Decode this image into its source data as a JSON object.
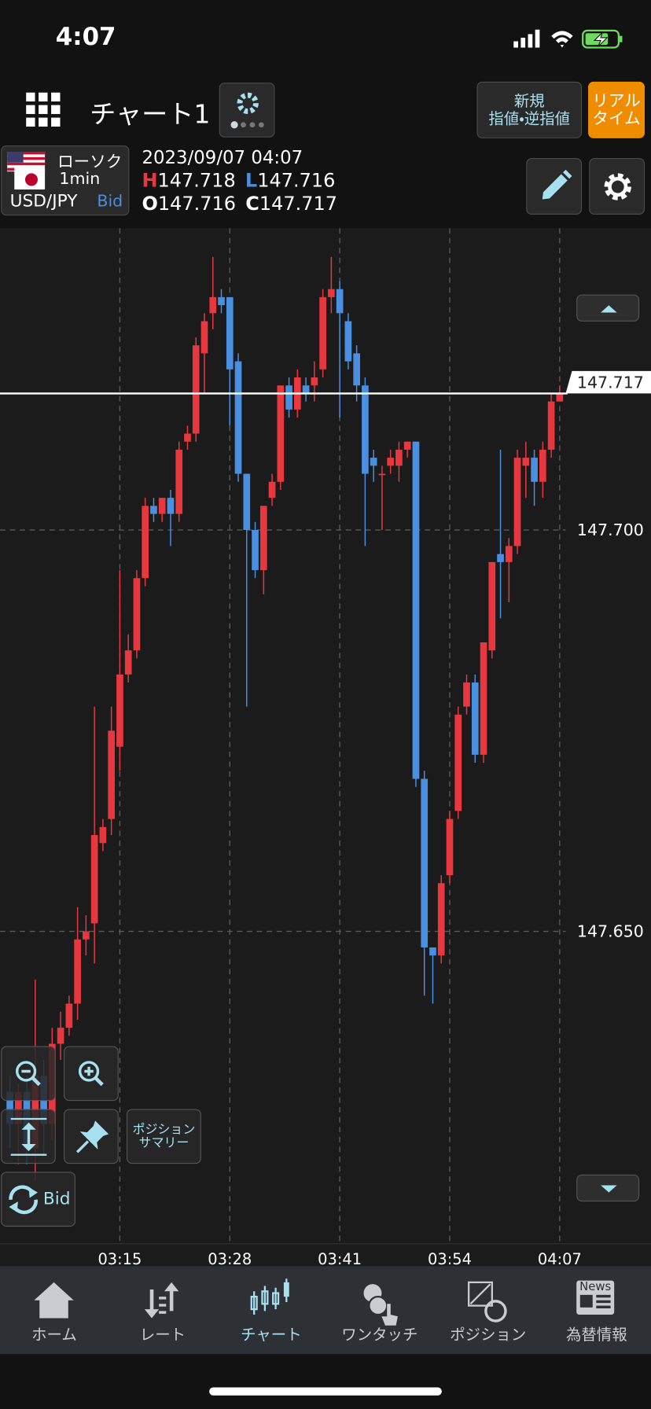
{
  "status_bar": {
    "time": "4:07"
  },
  "header": {
    "title": "チャート1",
    "new_order": [
      "新規",
      "指値・逆指値"
    ],
    "realtime": [
      "リアル",
      "タイム"
    ]
  },
  "instrument": {
    "chart_type": "ローソク",
    "interval": "1min",
    "pair": "USD/JPY",
    "side": "Bid"
  },
  "quote": {
    "datetime": "2023/09/07 04:07",
    "high_label": "H",
    "high": 147.718,
    "low_label": "L",
    "low": 147.716,
    "open_label": "O",
    "open": 147.716,
    "close_label": "C",
    "close": 147.717
  },
  "controls": {
    "position_summary": [
      "ポジション",
      "サマリー"
    ],
    "price_side": "Bid"
  },
  "chart_data": {
    "type": "candlestick",
    "categories": [
      null,
      null,
      null,
      null,
      null,
      null,
      null,
      null,
      null,
      null,
      null,
      null,
      null,
      "03:15",
      null,
      null,
      null,
      null,
      null,
      null,
      null,
      null,
      null,
      null,
      null,
      null,
      "03:28",
      null,
      null,
      null,
      null,
      null,
      null,
      null,
      null,
      null,
      null,
      null,
      null,
      "03:41",
      null,
      null,
      null,
      null,
      null,
      null,
      null,
      null,
      null,
      null,
      null,
      null,
      "03:54",
      null,
      null,
      null,
      null,
      null,
      null,
      null,
      null,
      null,
      null,
      null,
      null,
      "04:07"
    ],
    "open": [
      147.63,
      147.626,
      147.63,
      147.623,
      147.632,
      147.626,
      147.636,
      147.638,
      147.641,
      147.649,
      147.651,
      147.661,
      147.664,
      147.673,
      147.682,
      147.685,
      147.694,
      147.703,
      147.702,
      147.704,
      147.702,
      147.711,
      147.712,
      147.722,
      147.727,
      147.729,
      147.729,
      147.721,
      147.707,
      147.7,
      147.695,
      147.704,
      147.706,
      147.718,
      147.715,
      147.718,
      147.718,
      147.72,
      147.729,
      147.73,
      147.726,
      147.722,
      147.718,
      147.709,
      147.707,
      147.708,
      147.708,
      147.71,
      147.711,
      147.669,
      147.648,
      147.647,
      147.657,
      147.665,
      147.678,
      147.681,
      147.672,
      147.685,
      147.697,
      147.696,
      147.698,
      147.708,
      147.709,
      147.706,
      147.71,
      147.716
    ],
    "high": [
      147.632,
      147.631,
      147.632,
      147.644,
      147.634,
      147.638,
      147.64,
      147.642,
      147.653,
      147.652,
      147.678,
      147.664,
      147.678,
      147.695,
      147.687,
      147.695,
      147.704,
      147.704,
      147.704,
      147.705,
      147.711,
      147.713,
      147.724,
      147.727,
      147.734,
      147.73,
      147.729,
      147.722,
      147.707,
      147.701,
      147.703,
      147.707,
      147.718,
      147.719,
      147.72,
      147.719,
      147.721,
      147.73,
      147.734,
      147.731,
      147.727,
      147.723,
      147.719,
      147.71,
      147.708,
      147.71,
      147.711,
      147.711,
      147.711,
      147.67,
      147.648,
      147.657,
      147.665,
      147.678,
      147.682,
      147.682,
      147.686,
      147.696,
      147.71,
      147.699,
      147.71,
      147.711,
      147.71,
      147.711,
      147.717,
      147.718
    ],
    "low": [
      147.623,
      147.621,
      147.621,
      147.619,
      147.622,
      147.624,
      147.634,
      147.637,
      147.639,
      147.647,
      147.646,
      147.66,
      147.662,
      147.67,
      147.681,
      147.684,
      147.693,
      147.701,
      147.701,
      147.698,
      147.701,
      147.71,
      147.711,
      147.717,
      147.725,
      147.727,
      147.713,
      147.706,
      147.678,
      147.694,
      147.692,
      147.703,
      147.705,
      147.714,
      147.714,
      147.716,
      147.716,
      147.719,
      147.727,
      147.714,
      147.72,
      147.716,
      147.698,
      147.706,
      147.7,
      147.707,
      147.706,
      147.709,
      147.668,
      147.642,
      147.641,
      147.646,
      147.656,
      147.664,
      147.677,
      147.671,
      147.671,
      147.684,
      147.689,
      147.691,
      147.697,
      147.704,
      147.703,
      147.704,
      147.709,
      147.716
    ],
    "close": [
      147.626,
      147.63,
      147.623,
      147.632,
      147.626,
      147.636,
      147.638,
      147.641,
      147.649,
      147.65,
      147.662,
      147.663,
      147.675,
      147.682,
      147.685,
      147.694,
      147.703,
      147.702,
      147.704,
      147.702,
      147.71,
      147.712,
      147.723,
      147.726,
      147.729,
      147.728,
      147.72,
      147.707,
      147.7,
      147.695,
      147.703,
      147.706,
      147.718,
      147.715,
      147.719,
      147.717,
      147.719,
      147.729,
      147.73,
      147.727,
      147.721,
      147.718,
      147.707,
      147.708,
      147.707,
      147.709,
      147.71,
      147.711,
      147.669,
      147.648,
      147.647,
      147.656,
      147.664,
      147.677,
      147.681,
      147.672,
      147.686,
      147.696,
      147.696,
      147.698,
      147.709,
      147.709,
      147.706,
      147.71,
      147.716,
      147.717
    ],
    "up_color": "#e8383f",
    "down_color": "#4a8fe0",
    "ylim": [
      147.6111,
      147.7376
    ],
    "yticks": [
      {
        "value": 147.65,
        "label": "147.650"
      },
      {
        "value": 147.7,
        "label": "147.700"
      }
    ],
    "last_price": 147.717,
    "grid": true
  },
  "nav": {
    "items": [
      "ホーム",
      "レート",
      "チャート",
      "ワンタッチ",
      "ポジション",
      "為替情報"
    ],
    "news_icon": "News"
  }
}
